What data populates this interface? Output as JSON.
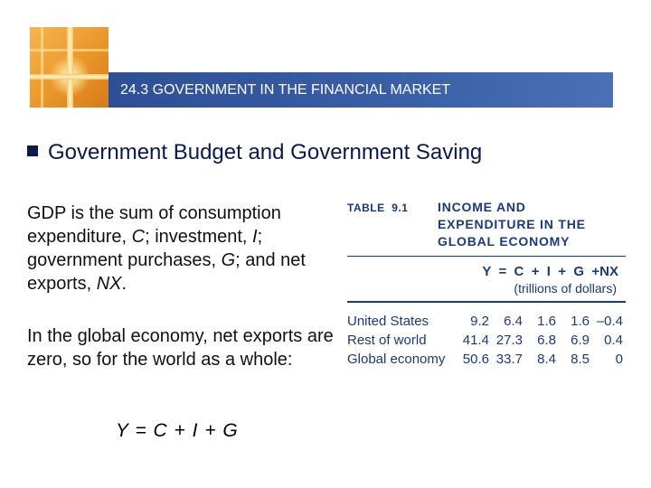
{
  "header": {
    "title": "24.3 GOVERNMENT IN THE FINANCIAL MARKET"
  },
  "heading": "Government Budget and Government Saving",
  "paragraph1": {
    "parts": [
      "GDP is the sum of consumption expenditure, ",
      "C",
      "; investment, ",
      "I",
      "; government purchases, ",
      "G",
      "; and net exports, ",
      "NX",
      "."
    ]
  },
  "paragraph2": "In the global economy, net exports are zero, so for the world as a whole:",
  "equation": "Y = C + I + G",
  "table": {
    "label": "TABLE",
    "number": "9.1",
    "title_lines": [
      "INCOME AND",
      "EXPENDITURE IN THE",
      "GLOBAL ECONOMY"
    ],
    "equation": "Y  =  C  +  I  +  G  +NX",
    "units": "(trillions of dollars)",
    "rows": [
      {
        "name": "United States",
        "values": [
          "9.2",
          "6.4",
          "1.6",
          "1.6",
          "–0.4"
        ]
      },
      {
        "name": "Rest of world",
        "values": [
          "41.4",
          "27.3",
          "6.8",
          "6.9",
          "0.4"
        ]
      },
      {
        "name": "Global economy",
        "values": [
          "50.6",
          "33.7",
          "8.4",
          "8.5",
          "0"
        ]
      }
    ]
  }
}
